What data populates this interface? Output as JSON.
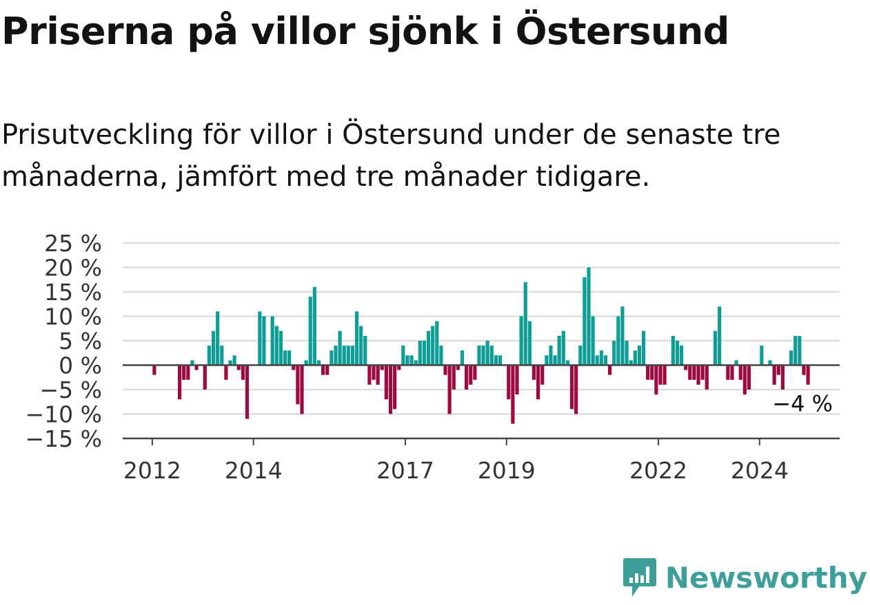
{
  "title": "Priserna på villor sjönk i Östersund",
  "subtitle": "Prisutveckling för villor i Östersund under de senaste tre månaderna, jämfört med tre månader tidigare.",
  "brand": {
    "name": "Newsworthy",
    "icon": "newsworthy-logo-icon"
  },
  "colors": {
    "positive": "#0f9d96",
    "negative": "#9c0a42",
    "gridline": "#dddddd",
    "axis": "#444444",
    "brand": "#3d9e9a"
  },
  "chart_data": {
    "type": "bar",
    "title": "",
    "xlabel": "",
    "ylabel": "",
    "ylim": [
      -15,
      25
    ],
    "y_ticks": [
      25,
      20,
      15,
      10,
      5,
      0,
      -5,
      -10,
      -15
    ],
    "y_tick_labels": [
      "25 %",
      "20 %",
      "15 %",
      "10 %",
      "5 %",
      "0 %",
      "−5 %",
      "−10 %",
      "−15 %"
    ],
    "x_ticks": [
      {
        "date": "2012-01",
        "label": "2012"
      },
      {
        "date": "2014-01",
        "label": "2014"
      },
      {
        "date": "2017-01",
        "label": "2017"
      },
      {
        "date": "2019-01",
        "label": "2019"
      },
      {
        "date": "2022-01",
        "label": "2022"
      },
      {
        "date": "2024-01",
        "label": "2024"
      }
    ],
    "grid": true,
    "start_month": "2011-06",
    "end_month": "2025-07",
    "series": [
      {
        "values": [
          {
            "m": "2012-01",
            "v": -2
          },
          {
            "m": "2012-07",
            "v": -7
          },
          {
            "m": "2012-08",
            "v": -3
          },
          {
            "m": "2012-09",
            "v": -3
          },
          {
            "m": "2012-10",
            "v": 1
          },
          {
            "m": "2012-11",
            "v": -1
          },
          {
            "m": "2013-01",
            "v": -5
          },
          {
            "m": "2013-02",
            "v": 4
          },
          {
            "m": "2013-03",
            "v": 7
          },
          {
            "m": "2013-04",
            "v": 11
          },
          {
            "m": "2013-05",
            "v": 4
          },
          {
            "m": "2013-06",
            "v": -3
          },
          {
            "m": "2013-07",
            "v": 1
          },
          {
            "m": "2013-08",
            "v": 2
          },
          {
            "m": "2013-09",
            "v": -1
          },
          {
            "m": "2013-10",
            "v": -3
          },
          {
            "m": "2013-11",
            "v": -11
          },
          {
            "m": "2014-02",
            "v": 11
          },
          {
            "m": "2014-03",
            "v": 10
          },
          {
            "m": "2014-05",
            "v": 10
          },
          {
            "m": "2014-06",
            "v": 8
          },
          {
            "m": "2014-07",
            "v": 7
          },
          {
            "m": "2014-08",
            "v": 3
          },
          {
            "m": "2014-09",
            "v": 3
          },
          {
            "m": "2014-10",
            "v": -1
          },
          {
            "m": "2014-11",
            "v": -8
          },
          {
            "m": "2014-12",
            "v": -10
          },
          {
            "m": "2015-01",
            "v": 1
          },
          {
            "m": "2015-02",
            "v": 14
          },
          {
            "m": "2015-03",
            "v": 16
          },
          {
            "m": "2015-04",
            "v": 1
          },
          {
            "m": "2015-05",
            "v": -2
          },
          {
            "m": "2015-06",
            "v": -2
          },
          {
            "m": "2015-07",
            "v": 3
          },
          {
            "m": "2015-08",
            "v": 4
          },
          {
            "m": "2015-09",
            "v": 7
          },
          {
            "m": "2015-10",
            "v": 4
          },
          {
            "m": "2015-11",
            "v": 4
          },
          {
            "m": "2015-12",
            "v": 4
          },
          {
            "m": "2016-01",
            "v": 11
          },
          {
            "m": "2016-02",
            "v": 8
          },
          {
            "m": "2016-03",
            "v": 6
          },
          {
            "m": "2016-04",
            "v": -4
          },
          {
            "m": "2016-05",
            "v": -3
          },
          {
            "m": "2016-06",
            "v": -4
          },
          {
            "m": "2016-07",
            "v": -1
          },
          {
            "m": "2016-08",
            "v": -7
          },
          {
            "m": "2016-09",
            "v": -10
          },
          {
            "m": "2016-10",
            "v": -9
          },
          {
            "m": "2016-11",
            "v": -1
          },
          {
            "m": "2016-12",
            "v": 4
          },
          {
            "m": "2017-01",
            "v": 2
          },
          {
            "m": "2017-02",
            "v": 2
          },
          {
            "m": "2017-03",
            "v": 1
          },
          {
            "m": "2017-04",
            "v": 5
          },
          {
            "m": "2017-05",
            "v": 5
          },
          {
            "m": "2017-06",
            "v": 7
          },
          {
            "m": "2017-07",
            "v": 8
          },
          {
            "m": "2017-08",
            "v": 9
          },
          {
            "m": "2017-09",
            "v": 4
          },
          {
            "m": "2017-10",
            "v": -2
          },
          {
            "m": "2017-11",
            "v": -10
          },
          {
            "m": "2017-12",
            "v": -5
          },
          {
            "m": "2018-01",
            "v": -1
          },
          {
            "m": "2018-02",
            "v": 3
          },
          {
            "m": "2018-03",
            "v": -5
          },
          {
            "m": "2018-04",
            "v": -4
          },
          {
            "m": "2018-05",
            "v": -3
          },
          {
            "m": "2018-06",
            "v": 4
          },
          {
            "m": "2018-07",
            "v": 4
          },
          {
            "m": "2018-08",
            "v": 5
          },
          {
            "m": "2018-09",
            "v": 4
          },
          {
            "m": "2018-10",
            "v": 2
          },
          {
            "m": "2018-11",
            "v": 2
          },
          {
            "m": "2019-01",
            "v": -7
          },
          {
            "m": "2019-02",
            "v": -12
          },
          {
            "m": "2019-03",
            "v": -6
          },
          {
            "m": "2019-04",
            "v": 10
          },
          {
            "m": "2019-05",
            "v": 17
          },
          {
            "m": "2019-06",
            "v": 9
          },
          {
            "m": "2019-07",
            "v": -3
          },
          {
            "m": "2019-08",
            "v": -7
          },
          {
            "m": "2019-09",
            "v": -4
          },
          {
            "m": "2019-10",
            "v": 2
          },
          {
            "m": "2019-11",
            "v": 4
          },
          {
            "m": "2019-12",
            "v": 2
          },
          {
            "m": "2020-01",
            "v": 6
          },
          {
            "m": "2020-02",
            "v": 7
          },
          {
            "m": "2020-03",
            "v": 1
          },
          {
            "m": "2020-04",
            "v": -9
          },
          {
            "m": "2020-05",
            "v": -10
          },
          {
            "m": "2020-06",
            "v": 4
          },
          {
            "m": "2020-07",
            "v": 18
          },
          {
            "m": "2020-08",
            "v": 20
          },
          {
            "m": "2020-09",
            "v": 10
          },
          {
            "m": "2020-10",
            "v": 2
          },
          {
            "m": "2020-11",
            "v": 3
          },
          {
            "m": "2020-12",
            "v": 2
          },
          {
            "m": "2021-01",
            "v": -2
          },
          {
            "m": "2021-02",
            "v": 5
          },
          {
            "m": "2021-03",
            "v": 10
          },
          {
            "m": "2021-04",
            "v": 12
          },
          {
            "m": "2021-05",
            "v": 5
          },
          {
            "m": "2021-06",
            "v": 1
          },
          {
            "m": "2021-07",
            "v": 3
          },
          {
            "m": "2021-08",
            "v": 4
          },
          {
            "m": "2021-09",
            "v": 7
          },
          {
            "m": "2021-10",
            "v": -3
          },
          {
            "m": "2021-11",
            "v": -3
          },
          {
            "m": "2021-12",
            "v": -6
          },
          {
            "m": "2022-01",
            "v": -4
          },
          {
            "m": "2022-02",
            "v": -4
          },
          {
            "m": "2022-04",
            "v": 6
          },
          {
            "m": "2022-05",
            "v": 5
          },
          {
            "m": "2022-06",
            "v": 4
          },
          {
            "m": "2022-07",
            "v": -1
          },
          {
            "m": "2022-08",
            "v": -3
          },
          {
            "m": "2022-09",
            "v": -3
          },
          {
            "m": "2022-10",
            "v": -4
          },
          {
            "m": "2022-11",
            "v": -3
          },
          {
            "m": "2022-12",
            "v": -5
          },
          {
            "m": "2023-02",
            "v": 7
          },
          {
            "m": "2023-03",
            "v": 12
          },
          {
            "m": "2023-05",
            "v": -3
          },
          {
            "m": "2023-06",
            "v": -3
          },
          {
            "m": "2023-07",
            "v": 1
          },
          {
            "m": "2023-08",
            "v": -3
          },
          {
            "m": "2023-09",
            "v": -6
          },
          {
            "m": "2023-10",
            "v": -5
          },
          {
            "m": "2024-01",
            "v": 4
          },
          {
            "m": "2024-03",
            "v": 1
          },
          {
            "m": "2024-04",
            "v": -4
          },
          {
            "m": "2024-05",
            "v": -2
          },
          {
            "m": "2024-06",
            "v": -5
          },
          {
            "m": "2024-08",
            "v": 3
          },
          {
            "m": "2024-09",
            "v": 6
          },
          {
            "m": "2024-10",
            "v": 6
          },
          {
            "m": "2024-11",
            "v": -2
          },
          {
            "m": "2024-12",
            "v": -4
          }
        ]
      }
    ],
    "annotations": [
      {
        "m": "2024-12",
        "text": "−4 %"
      }
    ]
  }
}
